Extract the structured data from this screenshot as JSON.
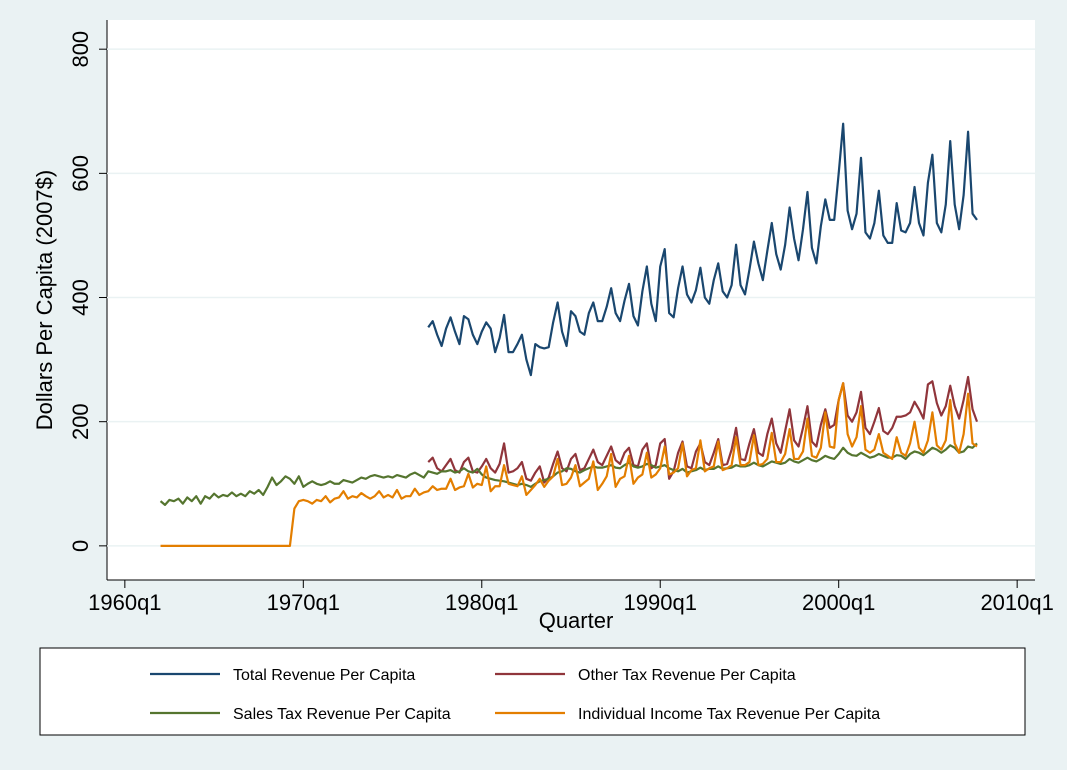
{
  "chart_data": {
    "type": "line",
    "y_label": "Dollars Per Capita (2007$)",
    "x_label": "Quarter",
    "xlim": [
      -4,
      204
    ],
    "ylim": [
      -55,
      847
    ],
    "xticks": [
      {
        "value": 0,
        "label": "1960q1"
      },
      {
        "value": 40,
        "label": "1970q1"
      },
      {
        "value": 80,
        "label": "1980q1"
      },
      {
        "value": 120,
        "label": "1990q1"
      },
      {
        "value": 160,
        "label": "2000q1"
      },
      {
        "value": 200,
        "label": "2010q1"
      }
    ],
    "yticks": [
      0,
      200,
      400,
      600,
      800
    ],
    "grid": true,
    "x": [
      8,
      9,
      10,
      11,
      12,
      13,
      14,
      15,
      16,
      17,
      18,
      19,
      20,
      21,
      22,
      23,
      24,
      25,
      26,
      27,
      28,
      29,
      30,
      31,
      32,
      33,
      34,
      35,
      36,
      37,
      38,
      39,
      40,
      41,
      42,
      43,
      44,
      45,
      46,
      47,
      48,
      49,
      50,
      51,
      52,
      53,
      54,
      55,
      56,
      57,
      58,
      59,
      60,
      61,
      62,
      63,
      64,
      65,
      66,
      67,
      68,
      69,
      70,
      71,
      72,
      73,
      74,
      75,
      76,
      77,
      78,
      79,
      80,
      81,
      82,
      83,
      84,
      85,
      86,
      87,
      88,
      89,
      90,
      91,
      92,
      93,
      94,
      95,
      96,
      97,
      98,
      99,
      100,
      101,
      102,
      103,
      104,
      105,
      106,
      107,
      108,
      109,
      110,
      111,
      112,
      113,
      114,
      115,
      116,
      117,
      118,
      119,
      120,
      121,
      122,
      123,
      124,
      125,
      126,
      127,
      128,
      129,
      130,
      131,
      132,
      133,
      134,
      135,
      136,
      137,
      138,
      139,
      140,
      141,
      142,
      143,
      144,
      145,
      146,
      147,
      148,
      149,
      150,
      151,
      152,
      153,
      154,
      155,
      156,
      157,
      158,
      159,
      160,
      161,
      162,
      163,
      164,
      165,
      166,
      167,
      168,
      169,
      170,
      171,
      172,
      173,
      174,
      175,
      176,
      177,
      178,
      179,
      180,
      181,
      182,
      183,
      184,
      185,
      186,
      187,
      188,
      189,
      190,
      191
    ],
    "series": [
      {
        "name": "Total Revenue Per Capita",
        "color": "#1a476f",
        "values": [
          null,
          null,
          null,
          null,
          null,
          null,
          null,
          null,
          null,
          null,
          null,
          null,
          null,
          null,
          null,
          null,
          null,
          null,
          null,
          null,
          null,
          null,
          null,
          null,
          null,
          null,
          null,
          null,
          null,
          null,
          null,
          null,
          null,
          null,
          null,
          null,
          null,
          null,
          null,
          null,
          null,
          null,
          null,
          null,
          null,
          null,
          null,
          null,
          null,
          null,
          null,
          null,
          null,
          null,
          null,
          null,
          null,
          null,
          null,
          null,
          352,
          362,
          340,
          322,
          350,
          368,
          345,
          325,
          370,
          365,
          340,
          325,
          345,
          360,
          350,
          312,
          335,
          372,
          312,
          312,
          325,
          340,
          300,
          275,
          325,
          320,
          318,
          320,
          360,
          392,
          345,
          322,
          378,
          370,
          345,
          340,
          375,
          392,
          362,
          362,
          385,
          415,
          375,
          362,
          395,
          422,
          370,
          355,
          410,
          450,
          390,
          362,
          450,
          478,
          375,
          368,
          415,
          450,
          405,
          392,
          412,
          448,
          400,
          390,
          428,
          455,
          410,
          400,
          420,
          485,
          420,
          405,
          445,
          490,
          455,
          428,
          475,
          520,
          470,
          445,
          485,
          545,
          495,
          460,
          510,
          570,
          480,
          455,
          515,
          558,
          525,
          525,
          600,
          680,
          540,
          510,
          535,
          625,
          505,
          495,
          520,
          572,
          500,
          488,
          488,
          552,
          508,
          505,
          520,
          578,
          520,
          500,
          585,
          630,
          520,
          505,
          550,
          652,
          550,
          510,
          565,
          667,
          535,
          525
        ]
      },
      {
        "name": "Other Tax Revenue Per Capita",
        "color": "#90353b",
        "values": [
          null,
          null,
          null,
          null,
          null,
          null,
          null,
          null,
          null,
          null,
          null,
          null,
          null,
          null,
          null,
          null,
          null,
          null,
          null,
          null,
          null,
          null,
          null,
          null,
          null,
          null,
          null,
          null,
          null,
          null,
          null,
          null,
          null,
          null,
          null,
          null,
          null,
          null,
          null,
          null,
          null,
          null,
          null,
          null,
          null,
          null,
          null,
          null,
          null,
          null,
          null,
          null,
          null,
          null,
          null,
          null,
          null,
          null,
          null,
          null,
          135,
          142,
          125,
          120,
          130,
          140,
          122,
          118,
          135,
          142,
          120,
          118,
          128,
          140,
          125,
          118,
          132,
          165,
          118,
          120,
          125,
          135,
          108,
          105,
          118,
          128,
          102,
          110,
          132,
          152,
          125,
          120,
          140,
          148,
          122,
          125,
          140,
          155,
          135,
          130,
          145,
          160,
          138,
          132,
          150,
          158,
          130,
          128,
          155,
          165,
          125,
          130,
          165,
          172,
          108,
          120,
          150,
          168,
          128,
          125,
          152,
          165,
          135,
          130,
          150,
          172,
          130,
          132,
          155,
          190,
          140,
          138,
          165,
          188,
          150,
          145,
          180,
          205,
          165,
          150,
          185,
          220,
          170,
          160,
          190,
          225,
          168,
          160,
          195,
          220,
          190,
          195,
          235,
          262,
          210,
          200,
          215,
          248,
          190,
          180,
          200,
          222,
          185,
          180,
          190,
          208,
          208,
          210,
          215,
          232,
          220,
          205,
          260,
          265,
          230,
          210,
          225,
          258,
          225,
          205,
          235,
          272,
          220,
          200
        ]
      },
      {
        "name": "Sales Tax Revenue Per Capita",
        "color": "#55752f",
        "values": [
          72,
          66,
          74,
          72,
          76,
          68,
          78,
          72,
          80,
          68,
          80,
          76,
          84,
          78,
          82,
          80,
          86,
          80,
          84,
          80,
          88,
          84,
          90,
          82,
          95,
          110,
          98,
          104,
          112,
          108,
          100,
          112,
          95,
          100,
          104,
          100,
          98,
          100,
          104,
          100,
          100,
          106,
          104,
          102,
          106,
          110,
          108,
          112,
          114,
          112,
          110,
          112,
          110,
          114,
          112,
          110,
          115,
          118,
          114,
          110,
          120,
          118,
          116,
          120,
          120,
          122,
          118,
          120,
          125,
          120,
          118,
          124,
          115,
          110,
          108,
          106,
          105,
          104,
          102,
          100,
          98,
          100,
          98,
          95,
          100,
          104,
          106,
          108,
          112,
          118,
          120,
          125,
          124,
          120,
          118,
          122,
          125,
          128,
          126,
          126,
          128,
          130,
          126,
          125,
          130,
          134,
          128,
          126,
          128,
          132,
          130,
          126,
          128,
          130,
          125,
          122,
          120,
          124,
          118,
          120,
          122,
          126,
          122,
          124,
          124,
          128,
          124,
          125,
          126,
          130,
          128,
          128,
          130,
          134,
          130,
          128,
          132,
          136,
          134,
          132,
          134,
          140,
          136,
          134,
          138,
          142,
          138,
          136,
          140,
          145,
          142,
          140,
          148,
          158,
          150,
          146,
          145,
          150,
          146,
          142,
          144,
          148,
          145,
          142,
          142,
          146,
          145,
          140,
          148,
          152,
          150,
          146,
          152,
          158,
          155,
          150,
          155,
          162,
          158,
          150,
          152,
          160,
          158,
          165
        ]
      },
      {
        "name": "Individual Income Tax Revenue Per Capita",
        "color": "#e37e00",
        "values": [
          0,
          0,
          0,
          0,
          0,
          0,
          0,
          0,
          0,
          0,
          0,
          0,
          0,
          0,
          0,
          0,
          0,
          0,
          0,
          0,
          0,
          0,
          0,
          0,
          0,
          0,
          0,
          0,
          0,
          0,
          60,
          72,
          74,
          72,
          68,
          74,
          72,
          80,
          70,
          76,
          78,
          88,
          76,
          80,
          78,
          85,
          80,
          76,
          80,
          88,
          78,
          82,
          78,
          90,
          76,
          80,
          80,
          92,
          82,
          86,
          88,
          96,
          90,
          92,
          92,
          108,
          90,
          94,
          96,
          116,
          94,
          100,
          98,
          128,
          88,
          96,
          96,
          130,
          100,
          98,
          96,
          112,
          82,
          90,
          98,
          108,
          95,
          105,
          112,
          140,
          98,
          100,
          110,
          130,
          96,
          102,
          108,
          136,
          90,
          100,
          112,
          148,
          95,
          108,
          112,
          145,
          100,
          110,
          115,
          150,
          110,
          115,
          125,
          160,
          115,
          118,
          125,
          165,
          112,
          122,
          125,
          170,
          120,
          125,
          128,
          168,
          122,
          125,
          130,
          175,
          130,
          130,
          135,
          178,
          130,
          132,
          140,
          182,
          135,
          135,
          148,
          188,
          140,
          140,
          152,
          205,
          145,
          142,
          158,
          215,
          160,
          158,
          235,
          262,
          180,
          160,
          175,
          225,
          155,
          150,
          155,
          180,
          150,
          145,
          140,
          175,
          150,
          145,
          165,
          200,
          158,
          150,
          170,
          215,
          162,
          155,
          170,
          235,
          165,
          150,
          180,
          245,
          165,
          160
        ]
      }
    ]
  }
}
